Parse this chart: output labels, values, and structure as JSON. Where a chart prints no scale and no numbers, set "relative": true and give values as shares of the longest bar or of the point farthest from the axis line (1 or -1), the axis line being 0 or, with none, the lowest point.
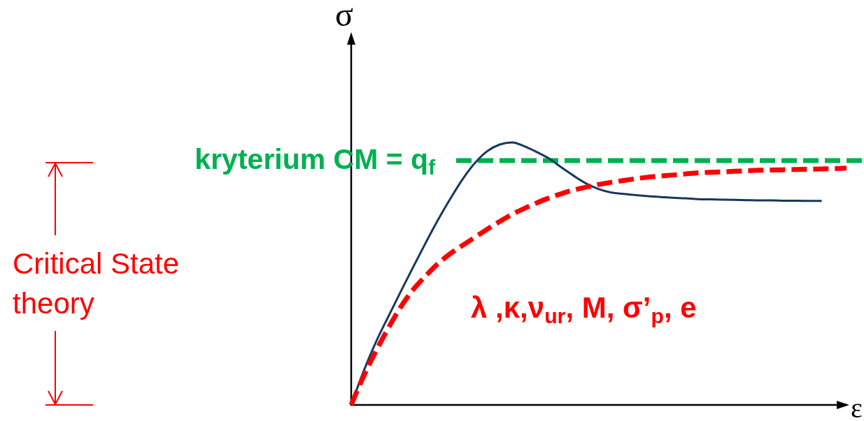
{
  "chart_data": {
    "type": "line",
    "relative": true,
    "xlabel": "ε",
    "ylabel": "σ",
    "categories": [
      null,
      null,
      null,
      null,
      null,
      null,
      null,
      null,
      null,
      null,
      null,
      null,
      null,
      null,
      null,
      null,
      null,
      null,
      null,
      null,
      null,
      null,
      null,
      null,
      null,
      null,
      null,
      null,
      null,
      null,
      null,
      null,
      null,
      null,
      null,
      null,
      null,
      null,
      null,
      null,
      null
    ],
    "series": [
      {
        "color": "#17375e",
        "line_style": "solid",
        "values": [
          0,
          0.128,
          0.24,
          0.337,
          0.432,
          0.525,
          0.616,
          0.704,
          0.785,
          0.86,
          0.922,
          0.967,
          0.992,
          1,
          0.985,
          0.963,
          0.938,
          0.904,
          0.872,
          0.843,
          0.822,
          0.809,
          0.804,
          0.799,
          0.795,
          0.792,
          0.789,
          0.787,
          0.784,
          0.783,
          0.782,
          0.781,
          0.78,
          0.779,
          0.779,
          0.778,
          0.778,
          0.777,
          0.777,
          null,
          null
        ]
      },
      {
        "color": "#ff0000",
        "line_style": "dashed",
        "values": [
          0,
          0.109,
          0.205,
          0.293,
          0.373,
          0.439,
          0.491,
          0.538,
          0.576,
          0.608,
          0.639,
          0.67,
          0.699,
          0.726,
          0.749,
          0.77,
          0.789,
          0.805,
          0.819,
          0.83,
          0.84,
          0.848,
          0.855,
          0.862,
          0.868,
          0.872,
          0.876,
          0.88,
          0.884,
          0.886,
          0.888,
          0.89,
          0.892,
          0.894,
          0.895,
          0.896,
          0.897,
          0.898,
          0.899,
          0.9,
          0.902
        ]
      }
    ],
    "ref_lines": [
      {
        "axis": "y",
        "value": 0.931,
        "label": "kryterium CM = q$_{f}$",
        "color": "#00b050",
        "line_style": "dashed"
      }
    ],
    "annotations": [
      "λ ,κ,ν$_{ur}$, M, σ’$_{p}$, e",
      "Critical State theory"
    ]
  }
}
